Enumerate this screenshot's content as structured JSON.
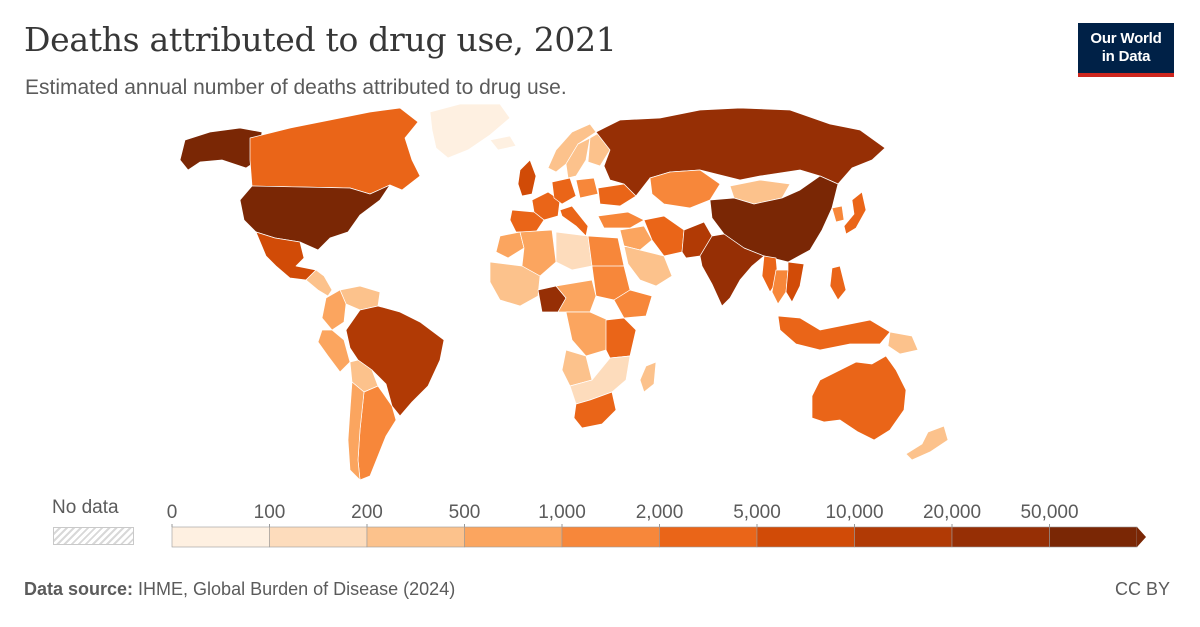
{
  "header": {
    "title": "Deaths attributed to drug use, 2021",
    "subtitle": "Estimated annual number of deaths attributed to drug use."
  },
  "logo": {
    "line1": "Our World",
    "line2": "in Data"
  },
  "legend": {
    "no_data_label": "No data",
    "bins": [
      {
        "from": "0",
        "to": "100",
        "color": "#fef0e1"
      },
      {
        "from": "100",
        "to": "200",
        "color": "#fddcbc"
      },
      {
        "from": "200",
        "to": "500",
        "color": "#fcc28c"
      },
      {
        "from": "500",
        "to": "1,000",
        "color": "#fba55f"
      },
      {
        "from": "1,000",
        "to": "2,000",
        "color": "#f7873a"
      },
      {
        "from": "2,000",
        "to": "5,000",
        "color": "#ea6518"
      },
      {
        "from": "5,000",
        "to": "10,000",
        "color": "#d14b07"
      },
      {
        "from": "10,000",
        "to": "20,000",
        "color": "#b13a05"
      },
      {
        "from": "20,000",
        "to": "50,000",
        "color": "#962f05"
      },
      {
        "from": "50,000",
        "to": "",
        "color": "#7a2705"
      }
    ],
    "ticks": [
      "0",
      "100",
      "200",
      "500",
      "1,000",
      "2,000",
      "5,000",
      "10,000",
      "20,000",
      "50,000"
    ]
  },
  "footer": {
    "source_label": "Data source:",
    "source_text": " IHME, Global Burden of Disease (2024)",
    "license": "CC BY"
  },
  "colors": {
    "border": "#ffffff",
    "no_data": "#e6e6e6"
  },
  "regions": [
    {
      "name": "United States",
      "bin": 9
    },
    {
      "name": "Alaska",
      "bin": 9
    },
    {
      "name": "Canada",
      "bin": 5
    },
    {
      "name": "Greenland",
      "bin": 0
    },
    {
      "name": "Mexico",
      "bin": 6
    },
    {
      "name": "Central America",
      "bin": 2
    },
    {
      "name": "Colombia",
      "bin": 3
    },
    {
      "name": "Venezuela",
      "bin": 2
    },
    {
      "name": "Peru",
      "bin": 3
    },
    {
      "name": "Bolivia",
      "bin": 2
    },
    {
      "name": "Brazil",
      "bin": 7
    },
    {
      "name": "Argentina",
      "bin": 4
    },
    {
      "name": "Chile",
      "bin": 3
    },
    {
      "name": "Iceland",
      "bin": 0
    },
    {
      "name": "Norway",
      "bin": 2
    },
    {
      "name": "Sweden",
      "bin": 2
    },
    {
      "name": "Finland",
      "bin": 2
    },
    {
      "name": "United Kingdom",
      "bin": 6
    },
    {
      "name": "Spain",
      "bin": 5
    },
    {
      "name": "France",
      "bin": 5
    },
    {
      "name": "Germany",
      "bin": 5
    },
    {
      "name": "Italy",
      "bin": 5
    },
    {
      "name": "Poland",
      "bin": 4
    },
    {
      "name": "Ukraine",
      "bin": 5
    },
    {
      "name": "Russia",
      "bin": 8
    },
    {
      "name": "Kazakhstan",
      "bin": 4
    },
    {
      "name": "Mongolia",
      "bin": 2
    },
    {
      "name": "China",
      "bin": 9
    },
    {
      "name": "Turkey",
      "bin": 4
    },
    {
      "name": "Iran",
      "bin": 5
    },
    {
      "name": "Middle East",
      "bin": 3
    },
    {
      "name": "Pakistan",
      "bin": 7
    },
    {
      "name": "India",
      "bin": 8
    },
    {
      "name": "Myanmar",
      "bin": 5
    },
    {
      "name": "Thailand",
      "bin": 4
    },
    {
      "name": "Vietnam",
      "bin": 6
    },
    {
      "name": "Japan",
      "bin": 5
    },
    {
      "name": "Korea",
      "bin": 4
    },
    {
      "name": "Philippines",
      "bin": 5
    },
    {
      "name": "Indonesia",
      "bin": 5
    },
    {
      "name": "Papua New Guinea",
      "bin": 2
    },
    {
      "name": "Australia",
      "bin": 5
    },
    {
      "name": "New Zealand",
      "bin": 2
    },
    {
      "name": "Morocco",
      "bin": 3
    },
    {
      "name": "Algeria",
      "bin": 3
    },
    {
      "name": "Libya",
      "bin": 1
    },
    {
      "name": "Egypt",
      "bin": 4
    },
    {
      "name": "West Africa",
      "bin": 2
    },
    {
      "name": "Nigeria",
      "bin": 8
    },
    {
      "name": "Sudan",
      "bin": 4
    },
    {
      "name": "Ethiopia",
      "bin": 4
    },
    {
      "name": "Central Africa",
      "bin": 3
    },
    {
      "name": "DR Congo",
      "bin": 3
    },
    {
      "name": "Tanzania",
      "bin": 5
    },
    {
      "name": "Angola",
      "bin": 2
    },
    {
      "name": "Southern Africa",
      "bin": 1
    },
    {
      "name": "South Africa",
      "bin": 5
    },
    {
      "name": "Madagascar",
      "bin": 2
    },
    {
      "name": "Saudi Arabia",
      "bin": 2
    }
  ]
}
